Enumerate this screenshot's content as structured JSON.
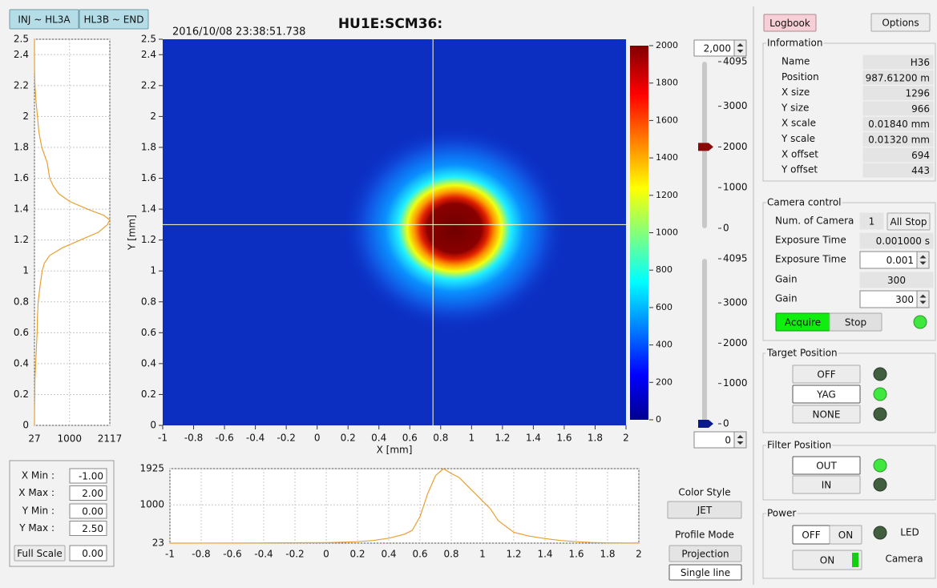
{
  "tabs": [
    "INJ ~ HL3A",
    "HL3B ~ END"
  ],
  "title": "HU1E:SCM36:",
  "timestamp": "2016/10/08 23:38:51.738",
  "image": {
    "xlabel": "X [mm]",
    "ylabel": "Y [mm]",
    "xlim": [
      -1,
      2
    ],
    "ylim": [
      0,
      2.5
    ],
    "xticks": [
      -1,
      -0.8,
      -0.6,
      -0.4,
      -0.2,
      0,
      0.2,
      0.4,
      0.6,
      0.8,
      1,
      1.2,
      1.4,
      1.6,
      1.8,
      2
    ],
    "yticks": [
      0,
      0.2,
      0.4,
      0.6,
      0.8,
      1,
      1.2,
      1.4,
      1.6,
      1.8,
      2,
      2.2,
      2.4,
      2.5
    ],
    "crosshair": [
      0.75,
      1.3
    ]
  },
  "colorbar": {
    "lim": [
      0,
      2000
    ],
    "ticks": [
      0,
      200,
      400,
      600,
      800,
      1000,
      1200,
      1400,
      1600,
      1800,
      2000
    ]
  },
  "top_slider": {
    "lim": [
      0,
      4095
    ],
    "ticks": [
      0,
      1000,
      2000,
      3000,
      4095
    ],
    "value": {
      "value": 2000,
      "label": "2,000"
    }
  },
  "bottom_slider": {
    "lim": [
      0,
      4095
    ],
    "ticks": [
      0,
      1000,
      2000,
      3000,
      4095
    ],
    "value": 0
  },
  "left_profile": {
    "xlim": [
      27,
      2117
    ],
    "xticks": [
      27,
      1000,
      2117
    ],
    "ylim": [
      0,
      2.5
    ],
    "yticks": [
      0,
      0.2,
      0.4,
      0.6,
      0.8,
      1,
      1.2,
      1.4,
      1.6,
      1.8,
      2,
      2.2,
      2.4,
      2.5
    ],
    "y": [
      0,
      0.1,
      0.2,
      0.3,
      0.4,
      0.5,
      0.6,
      0.7,
      0.8,
      0.9,
      1.0,
      1.05,
      1.1,
      1.15,
      1.2,
      1.25,
      1.3,
      1.33,
      1.36,
      1.4,
      1.45,
      1.5,
      1.55,
      1.6,
      1.7,
      1.8,
      1.9,
      2.0,
      2.1,
      2.2,
      2.3,
      2.4,
      2.5
    ],
    "values": [
      27,
      30,
      35,
      40,
      60,
      80,
      100,
      110,
      130,
      180,
      240,
      300,
      450,
      800,
      1300,
      1800,
      2050,
      2117,
      1950,
      1500,
      1000,
      700,
      550,
      450,
      380,
      230,
      150,
      110,
      70,
      40,
      30,
      27,
      27
    ]
  },
  "bottom_profile": {
    "xlim": [
      -1,
      2
    ],
    "xticks": [
      -1,
      -0.8,
      -0.6,
      -0.4,
      -0.2,
      0,
      0.2,
      0.4,
      0.6,
      0.8,
      1,
      1.2,
      1.4,
      1.6,
      1.8,
      2
    ],
    "ylim": [
      23,
      1925
    ],
    "yticks": [
      23,
      1000,
      1925
    ],
    "x": [
      -1,
      -0.5,
      0,
      0.1,
      0.2,
      0.3,
      0.4,
      0.5,
      0.55,
      0.6,
      0.65,
      0.7,
      0.75,
      0.8,
      0.85,
      0.9,
      0.95,
      1.0,
      1.05,
      1.1,
      1.2,
      1.3,
      1.4,
      1.5,
      1.6,
      1.7,
      1.8,
      2.0
    ],
    "values": [
      23,
      26,
      35,
      45,
      60,
      90,
      150,
      250,
      350,
      700,
      1300,
      1750,
      1925,
      1800,
      1700,
      1500,
      1300,
      1100,
      900,
      600,
      300,
      200,
      140,
      90,
      60,
      40,
      30,
      25
    ]
  },
  "range": {
    "rows": [
      {
        "label": "X Min :",
        "value": "-1.00"
      },
      {
        "label": "X Max :",
        "value": "2.00"
      },
      {
        "label": "Y Min :",
        "value": "0.00"
      },
      {
        "label": "Y Max :",
        "value": "2.50"
      }
    ],
    "full_scale": "Full Scale",
    "full_scale_value": "0.00"
  },
  "display": {
    "color_style_label": "Color Style",
    "color_style": "JET",
    "profile_mode_label": "Profile Mode",
    "profile_modes": [
      "Projection",
      "Single line"
    ]
  },
  "right": {
    "logbook": "Logbook",
    "options": "Options",
    "information": {
      "title": "Information",
      "rows": [
        [
          "Name",
          "H36"
        ],
        [
          "Position",
          "987.61200 m"
        ],
        [
          "X size",
          "1296"
        ],
        [
          "Y size",
          "966"
        ],
        [
          "X scale",
          "0.01840 mm"
        ],
        [
          "Y scale",
          "0.01320 mm"
        ],
        [
          "X offset",
          "694"
        ],
        [
          "Y offset",
          "443"
        ]
      ]
    },
    "camera_control": {
      "title": "Camera control",
      "num_label": "Num. of Camera",
      "num": "1",
      "all_stop": "All Stop",
      "exp_label": "Exposure Time",
      "exp_value": "0.001000 s",
      "exp_set_label": "Exposure Time",
      "exp_set": "0.001",
      "gain_label": "Gain",
      "gain_value": "300",
      "gain_set_label": "Gain",
      "gain_set": "300",
      "acquire": "Acquire",
      "stop": "Stop",
      "led_on": true
    },
    "target": {
      "title": "Target Position",
      "buttons": [
        {
          "label": "OFF",
          "led_on": false,
          "selected": false
        },
        {
          "label": "YAG",
          "led_on": true,
          "selected": true
        },
        {
          "label": "NONE",
          "led_on": false,
          "selected": false
        }
      ]
    },
    "filter": {
      "title": "Filter Position",
      "buttons": [
        {
          "label": "OUT",
          "led_on": true,
          "selected": true
        },
        {
          "label": "IN",
          "led_on": false,
          "selected": false
        }
      ]
    },
    "power": {
      "title": "Power",
      "led_buttons": [
        "OFF",
        "ON"
      ],
      "led_label": "LED",
      "led_on": false,
      "camera_button": "ON",
      "camera_label": "Camera"
    }
  }
}
